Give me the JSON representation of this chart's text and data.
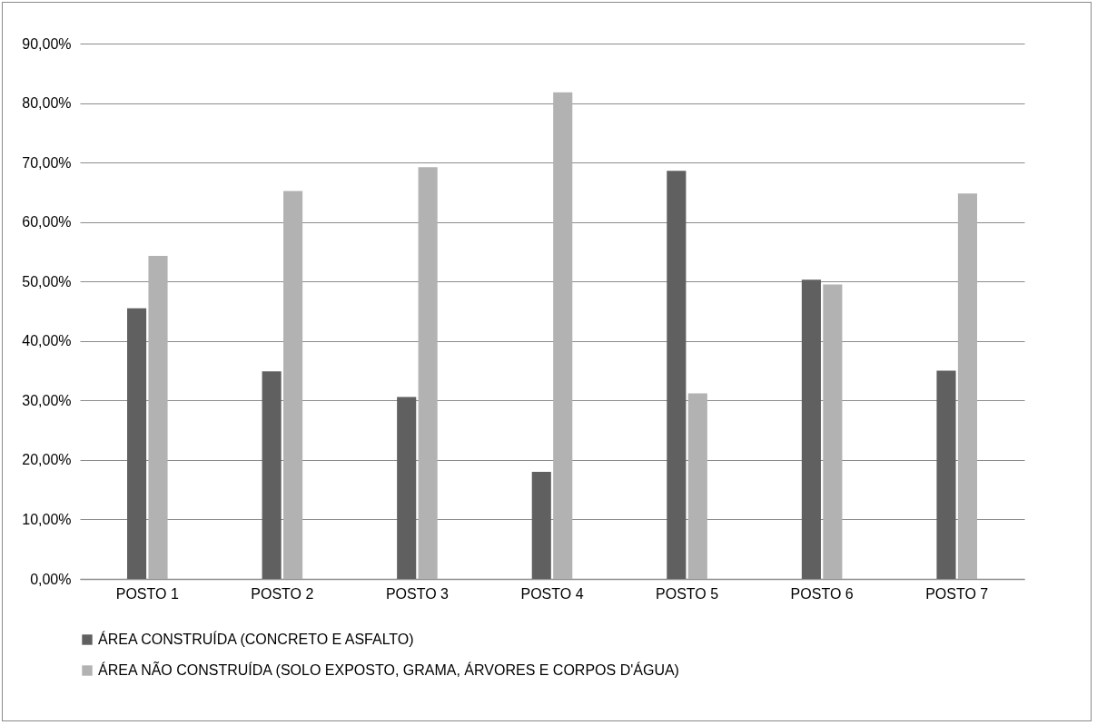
{
  "chart_data": {
    "type": "bar",
    "categories": [
      "POSTO 1",
      "POSTO 2",
      "POSTO 3",
      "POSTO 4",
      "POSTO 5",
      "POSTO 6",
      "POSTO 7"
    ],
    "series": [
      {
        "name": "ÁREA CONSTRUÍDA (CONCRETO E ASFALTO)",
        "color": "#606060",
        "values": [
          45.5,
          34.9,
          30.6,
          18.0,
          68.6,
          50.3,
          35.0
        ]
      },
      {
        "name": "ÁREA NÃO CONSTRUÍDA (SOLO EXPOSTO, GRAMA, ÁRVORES E CORPOS D'ÁGUA)",
        "color": "#b2b2b2",
        "values": [
          54.3,
          65.2,
          69.2,
          81.8,
          31.2,
          49.5,
          64.8
        ]
      }
    ],
    "ylim": [
      0,
      90
    ],
    "yticks": [
      {
        "value": 0,
        "label": "0,00%"
      },
      {
        "value": 10,
        "label": "10,00%"
      },
      {
        "value": 20,
        "label": "20,00%"
      },
      {
        "value": 30,
        "label": "30,00%"
      },
      {
        "value": 40,
        "label": "40,00%"
      },
      {
        "value": 50,
        "label": "50,00%"
      },
      {
        "value": 60,
        "label": "60,00%"
      },
      {
        "value": 70,
        "label": "70,00%"
      },
      {
        "value": 80,
        "label": "80,00%"
      },
      {
        "value": 90,
        "label": "90,00%"
      }
    ],
    "grid": "y",
    "legend": "bottom"
  }
}
